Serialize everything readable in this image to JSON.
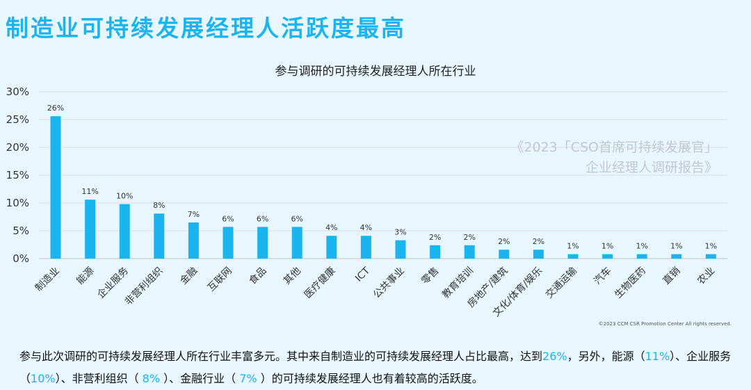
{
  "page": {
    "title": "制造业可持续发展经理人活跃度最高"
  },
  "chart_data": {
    "type": "bar",
    "title": "参与调研的可持续发展经理人所在行业",
    "categories": [
      "制造业",
      "能源",
      "企业服务",
      "非营利组织",
      "金融",
      "互联网",
      "食品",
      "其他",
      "医疗健康",
      "ICT",
      "公共事业",
      "零售",
      "教育培训",
      "房地产/建筑",
      "文化/体育/娱乐",
      "交通运输",
      "汽车",
      "生物医药",
      "直销",
      "农业"
    ],
    "values": [
      25.6,
      10.6,
      9.8,
      8.1,
      6.5,
      5.7,
      5.7,
      5.7,
      4.1,
      4.1,
      3.3,
      2.4,
      2.4,
      1.6,
      1.6,
      0.8,
      0.8,
      0.8,
      0.8,
      0.8
    ],
    "data_labels": [
      "26%",
      "11%",
      "10%",
      "8%",
      "7%",
      "6%",
      "6%",
      "6%",
      "4%",
      "4%",
      "3%",
      "2%",
      "2%",
      "2%",
      "2%",
      "1%",
      "1%",
      "1%",
      "1%",
      "1%"
    ],
    "yticks": [
      "0%",
      "5%",
      "10%",
      "15%",
      "20%",
      "25%",
      "30%"
    ],
    "ylim": [
      0,
      30
    ],
    "grid": true,
    "legend": "none",
    "bar_color": "#1ab4ee"
  },
  "watermark": {
    "line1": "《2023「CSO首席可持续发展官」",
    "line2": "企业经理人调研报告》"
  },
  "copyright": "©2023 CCM CSR Promotion Center All rights  reserved.",
  "summary": {
    "p1": "参与此次调研的可持续发展经理人所在行业丰富多元。其中来自制造业的可持续发展经理人占比最高，达到",
    "v1": "26%",
    "p2": "，另外，能源（",
    "v2": "11%",
    "p3": "）、企业服务（",
    "v3": "10%",
    "p4": "）、非营利组织（ ",
    "v4": "8%",
    "p5": " ）、金融行业（ ",
    "v5": "7%",
    "p6": " ）的可持续发展经理人也有着较高的活跃度。"
  },
  "colors": {
    "accent": "#1ab4ee",
    "title": "#1ab4ee"
  }
}
